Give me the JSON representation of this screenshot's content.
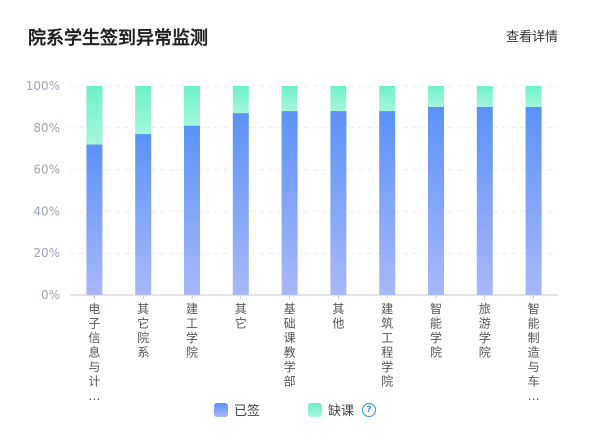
{
  "header": {
    "title": "院系学生签到异常监测",
    "detail_label": "查看详情"
  },
  "legend": {
    "signed_label": "已签",
    "absent_label": "缺课",
    "help_glyph": "?"
  },
  "colors": {
    "signed_top": "#5b92f7",
    "signed_bottom": "#a9b8f9",
    "absent_top": "#6ef0c9",
    "absent_bottom": "#a6f6dc",
    "axis_text": "#a0a4b8",
    "grid": "#eaedf2",
    "category_text": "#555555"
  },
  "chart_data": {
    "type": "bar",
    "stacked": true,
    "categories": [
      "电子信息与计…",
      "其它院系",
      "建工学院",
      "其它",
      "基础课教学部",
      "其他",
      "建筑工程学院",
      "智能学院",
      "旅游学院",
      "智能制造与车…"
    ],
    "series": [
      {
        "name": "已签",
        "values": [
          72,
          77,
          81,
          87,
          88,
          88,
          88,
          90,
          90,
          90
        ]
      },
      {
        "name": "缺课",
        "values": [
          28,
          23,
          19,
          13,
          12,
          12,
          12,
          10,
          10,
          10
        ]
      }
    ],
    "y_ticks": [
      "0%",
      "20%",
      "40%",
      "60%",
      "80%",
      "100%"
    ],
    "ylim": [
      0,
      100
    ],
    "grid": true,
    "legend_position": "bottom"
  }
}
